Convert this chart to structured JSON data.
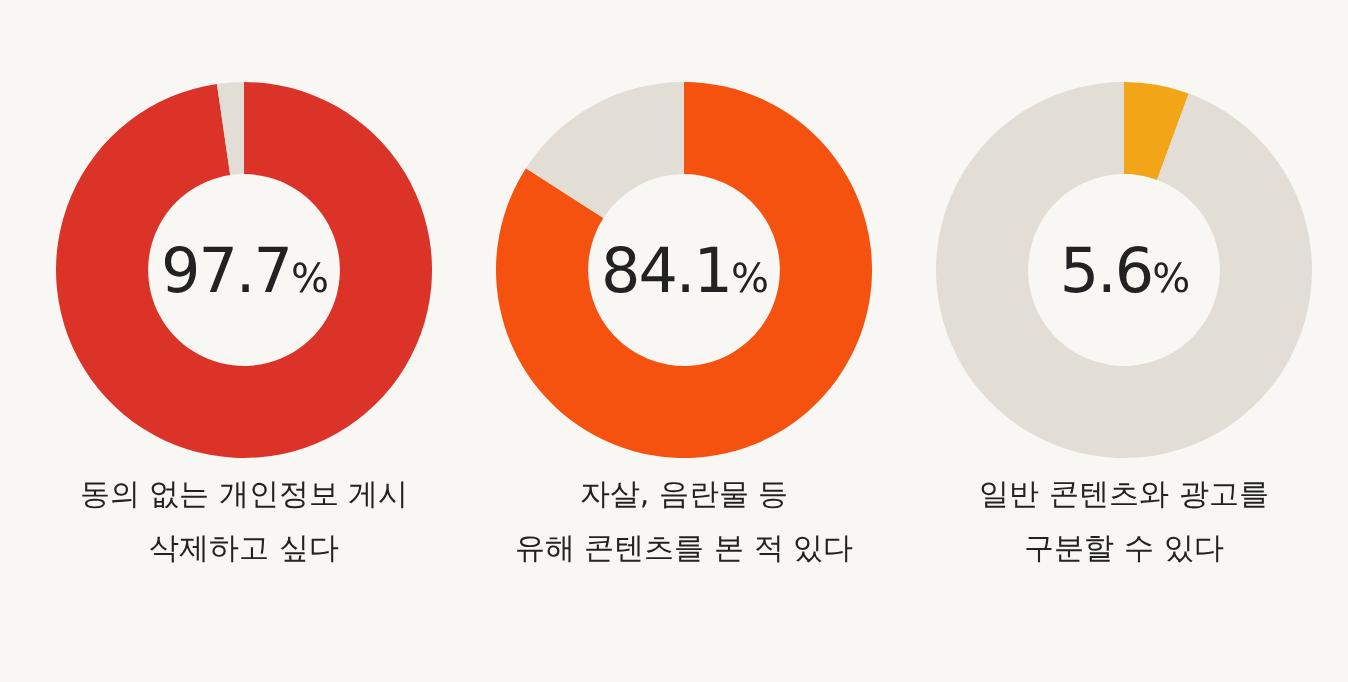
{
  "chart_data": [
    {
      "type": "donut",
      "title": "동의 없는 개인정보 게시\n삭제하고 싶다",
      "categories": [
        null,
        null
      ],
      "values": [
        97.7,
        2.3
      ],
      "colors": [
        "#dc3328",
        "#e2ded6"
      ],
      "annotations": [
        "97.7%"
      ]
    },
    {
      "type": "donut",
      "title": "자살, 음란물 등\n유해 콘텐츠를 본 적 있다",
      "categories": [
        null,
        null
      ],
      "values": [
        84.1,
        15.9
      ],
      "colors": [
        "#f4520e",
        "#e2ded6"
      ],
      "annotations": [
        "84.1%"
      ]
    },
    {
      "type": "donut",
      "title": "일반 콘텐츠와 광고를\n구분할 수 있다",
      "categories": [
        null,
        null
      ],
      "values": [
        5.6,
        94.4
      ],
      "colors": [
        "#f2a516",
        "#e2ded6"
      ],
      "annotations": [
        "5.6%"
      ]
    }
  ]
}
